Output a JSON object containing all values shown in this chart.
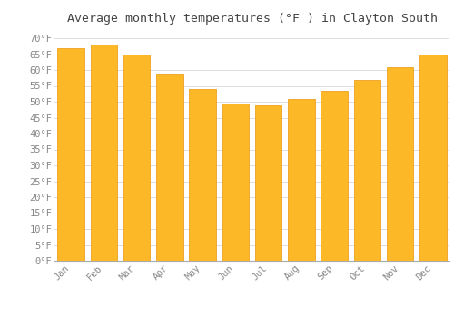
{
  "title": "Average monthly temperatures (°F ) in Clayton South",
  "months": [
    "Jan",
    "Feb",
    "Mar",
    "Apr",
    "May",
    "Jun",
    "Jul",
    "Aug",
    "Sep",
    "Oct",
    "Nov",
    "Dec"
  ],
  "values": [
    67,
    68,
    65,
    59,
    54,
    49.5,
    49,
    51,
    53.5,
    57,
    61,
    65
  ],
  "bar_color_top": "#FDB827",
  "bar_color_bottom": "#F5A623",
  "bar_edge_color": "#E8960A",
  "background_color": "#FFFFFF",
  "grid_color": "#DDDDDD",
  "ytick_labels": [
    "0°F",
    "5°F",
    "10°F",
    "15°F",
    "20°F",
    "25°F",
    "30°F",
    "35°F",
    "40°F",
    "45°F",
    "50°F",
    "55°F",
    "60°F",
    "65°F",
    "70°F"
  ],
  "ytick_values": [
    0,
    5,
    10,
    15,
    20,
    25,
    30,
    35,
    40,
    45,
    50,
    55,
    60,
    65,
    70
  ],
  "ylim": [
    0,
    72
  ],
  "title_fontsize": 9.5,
  "tick_fontsize": 7.5,
  "tick_font_color": "#888888",
  "title_font_color": "#444444"
}
